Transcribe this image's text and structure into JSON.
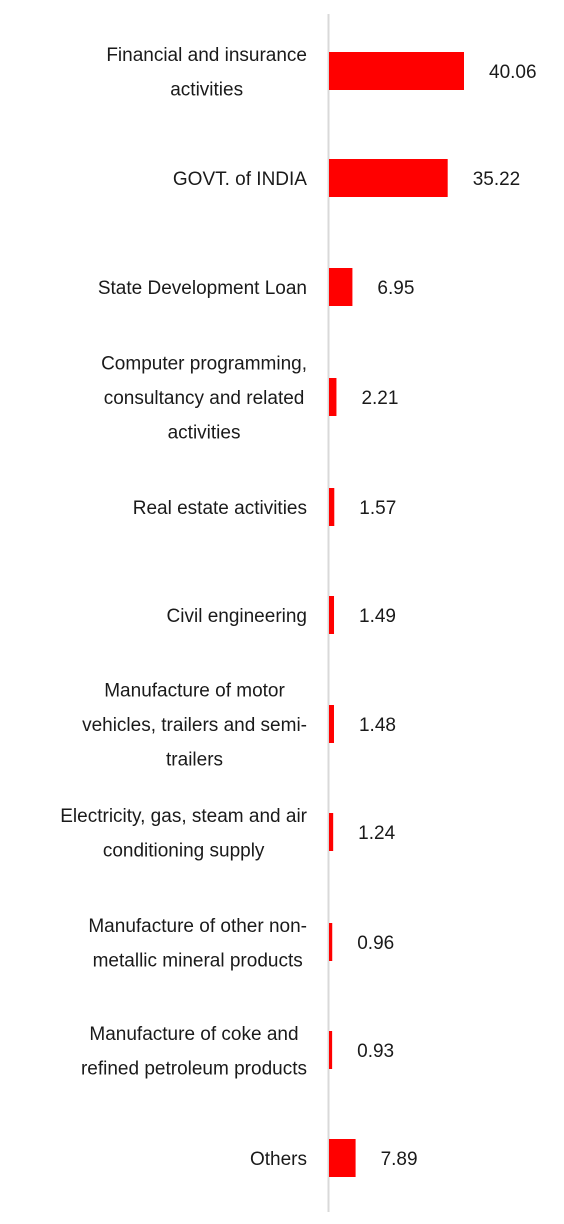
{
  "chart_data": {
    "type": "bar",
    "orientation": "horizontal",
    "title": "",
    "xlabel": "",
    "ylabel": "",
    "grid": false,
    "legend": "none",
    "bar_color": "#ff0000",
    "axis_color": "#d9d9d9",
    "xlim": [
      0,
      40.06
    ],
    "categories": [
      "Financial and insurance activities",
      "GOVT. of INDIA",
      "State Development Loan",
      "Computer programming, consultancy and related activities",
      "Real estate activities",
      "Civil engineering",
      "Manufacture of motor vehicles, trailers and semi-trailers",
      "Electricity, gas, steam and air conditioning supply",
      "Manufacture of other non-metallic mineral products",
      "Manufacture of coke and refined petroleum products",
      "Others"
    ],
    "category_lines": [
      [
        "Financial and insurance",
        "activities"
      ],
      [
        "GOVT. of INDIA"
      ],
      [
        "State Development Loan"
      ],
      [
        "Computer programming,",
        "consultancy and related",
        "activities"
      ],
      [
        "Real estate activities"
      ],
      [
        "Civil engineering"
      ],
      [
        "Manufacture of motor",
        "vehicles, trailers and semi-",
        "trailers"
      ],
      [
        "Electricity, gas, steam and air",
        "conditioning supply"
      ],
      [
        "Manufacture of other non-",
        "metallic mineral products"
      ],
      [
        "Manufacture of coke and",
        "refined petroleum products"
      ],
      [
        "Others"
      ]
    ],
    "values": [
      40.06,
      35.22,
      6.95,
      2.21,
      1.57,
      1.49,
      1.48,
      1.24,
      0.96,
      0.93,
      7.89
    ],
    "data_labels": [
      "40.06",
      "35.22",
      "6.95",
      "2.21",
      "1.57",
      "1.49",
      "1.48",
      "1.24",
      "0.96",
      "0.93",
      "7.89"
    ]
  }
}
